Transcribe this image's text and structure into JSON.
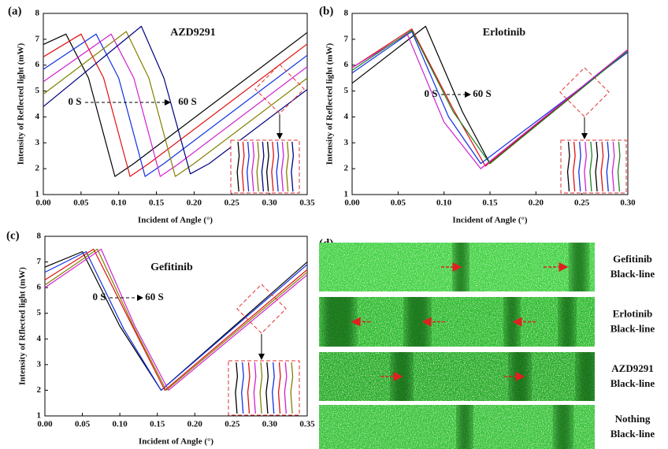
{
  "chart_data": [
    {
      "type": "line",
      "panel": "(a)",
      "title": "AZD9291",
      "xlabel": "Incident of Angle (°)",
      "ylabel": "Intensity of Reflected light (mW)",
      "annotations": [
        "0 S",
        "60 S"
      ],
      "xlim": [
        0,
        0.35
      ],
      "ylim": [
        1,
        8
      ],
      "xticks": [
        {
          "value": 0,
          "label": "0.00"
        },
        {
          "value": 0.05,
          "label": "0.05"
        },
        {
          "value": 0.1,
          "label": "0.10"
        },
        {
          "value": 0.15,
          "label": "0.15"
        },
        {
          "value": 0.2,
          "label": "0.20"
        },
        {
          "value": 0.25,
          "label": "0.25"
        },
        {
          "value": 0.3,
          "label": "0.30"
        },
        {
          "value": 0.35,
          "label": "0.35"
        }
      ],
      "yticks": [
        1,
        2,
        3,
        4,
        5,
        6,
        7,
        8
      ],
      "series": [
        {
          "color": "#000000",
          "x": [
            0,
            0.03,
            0.06,
            0.095,
            0.12,
            0.35
          ],
          "values": [
            6.8,
            7.2,
            5.5,
            1.7,
            2.2,
            7.26
          ]
        },
        {
          "color": "#e01010",
          "x": [
            0,
            0.05,
            0.08,
            0.115,
            0.14,
            0.35
          ],
          "values": [
            6.32,
            7.2,
            5.5,
            1.7,
            2.2,
            6.82
          ]
        },
        {
          "color": "#1030e0",
          "x": [
            0,
            0.07,
            0.1,
            0.135,
            0.16,
            0.35
          ],
          "values": [
            5.84,
            7.2,
            5.5,
            1.7,
            2.2,
            6.38
          ]
        },
        {
          "color": "#d020d0",
          "x": [
            0,
            0.09,
            0.12,
            0.155,
            0.18,
            0.35
          ],
          "values": [
            5.36,
            7.2,
            5.5,
            1.7,
            2.2,
            5.94
          ]
        },
        {
          "color": "#808000",
          "x": [
            0,
            0.11,
            0.14,
            0.175,
            0.2,
            0.35
          ],
          "values": [
            4.88,
            7.3,
            5.5,
            1.7,
            2.2,
            5.5
          ]
        },
        {
          "color": "#000080",
          "x": [
            0,
            0.13,
            0.16,
            0.195,
            0.22,
            0.35
          ],
          "values": [
            4.4,
            7.5,
            5.5,
            1.8,
            2.2,
            5.06
          ]
        }
      ]
    },
    {
      "type": "line",
      "panel": "(b)",
      "title": "Erlotinib",
      "xlabel": "Incident of Angle (°)",
      "ylabel": "Intensity of Reflected light (mW)",
      "annotations": [
        "0 S",
        "60 S"
      ],
      "xlim": [
        0,
        0.3
      ],
      "ylim": [
        1,
        8
      ],
      "xticks": [
        {
          "value": 0,
          "label": "0.00"
        },
        {
          "value": 0.05,
          "label": "0.05"
        },
        {
          "value": 0.1,
          "label": "0.10"
        },
        {
          "value": 0.15,
          "label": "0.15"
        },
        {
          "value": 0.2,
          "label": "0.20"
        },
        {
          "value": 0.25,
          "label": "0.25"
        },
        {
          "value": 0.3,
          "label": "0.30"
        }
      ],
      "yticks": [
        1,
        2,
        3,
        4,
        5,
        6,
        7,
        8
      ],
      "series": [
        {
          "color": "#000000",
          "x": [
            0,
            0.08,
            0.12,
            0.15,
            0.3
          ],
          "values": [
            5.3,
            7.5,
            4.2,
            2.2,
            6.6
          ]
        },
        {
          "color": "#e01010",
          "x": [
            0,
            0.065,
            0.11,
            0.145,
            0.3
          ],
          "values": [
            5.9,
            7.4,
            4.3,
            2.1,
            6.6
          ]
        },
        {
          "color": "#1030e0",
          "x": [
            0,
            0.065,
            0.105,
            0.14,
            0.3
          ],
          "values": [
            5.7,
            7.3,
            4.0,
            2.2,
            6.5
          ]
        },
        {
          "color": "#d020d0",
          "x": [
            0,
            0.06,
            0.1,
            0.14,
            0.3
          ],
          "values": [
            5.9,
            7.2,
            3.8,
            2.0,
            6.6
          ]
        },
        {
          "color": "#208020",
          "x": [
            0,
            0.065,
            0.11,
            0.15,
            0.3
          ],
          "values": [
            5.8,
            7.35,
            4.2,
            2.2,
            6.55
          ]
        }
      ]
    },
    {
      "type": "line",
      "panel": "(c)",
      "title": "Gefitinib",
      "xlabel": "Incident of Angle (°)",
      "ylabel": "Intensity of Rflected light (mW)",
      "annotations": [
        "0 S",
        "60 S"
      ],
      "xlim": [
        0,
        0.35
      ],
      "ylim": [
        1,
        8
      ],
      "xticks": [
        {
          "value": 0,
          "label": "0.00"
        },
        {
          "value": 0.05,
          "label": "0.05"
        },
        {
          "value": 0.1,
          "label": "0.10"
        },
        {
          "value": 0.15,
          "label": "0.15"
        },
        {
          "value": 0.2,
          "label": "0.20"
        },
        {
          "value": 0.25,
          "label": "0.25"
        },
        {
          "value": 0.3,
          "label": "0.30"
        },
        {
          "value": 0.35,
          "label": "0.35"
        }
      ],
      "yticks": [
        1,
        2,
        3,
        4,
        5,
        6,
        7,
        8
      ],
      "series": [
        {
          "color": "#000000",
          "x": [
            0,
            0.05,
            0.1,
            0.155,
            0.35
          ],
          "values": [
            6.8,
            7.4,
            4.5,
            2.0,
            7.0
          ]
        },
        {
          "color": "#1030e0",
          "x": [
            0,
            0.055,
            0.105,
            0.155,
            0.35
          ],
          "values": [
            6.6,
            7.4,
            4.4,
            2.0,
            6.9
          ]
        },
        {
          "color": "#e01010",
          "x": [
            0,
            0.065,
            0.115,
            0.16,
            0.35
          ],
          "values": [
            6.3,
            7.5,
            4.6,
            2.0,
            6.7
          ]
        },
        {
          "color": "#d020d0",
          "x": [
            0,
            0.075,
            0.12,
            0.165,
            0.35
          ],
          "values": [
            6.0,
            7.5,
            4.5,
            2.0,
            6.5
          ]
        },
        {
          "color": "#808000",
          "x": [
            0,
            0.07,
            0.118,
            0.162,
            0.35
          ],
          "values": [
            6.1,
            7.5,
            4.5,
            2.0,
            6.6
          ]
        }
      ]
    }
  ],
  "panel_d": {
    "label": "(d)",
    "rows": [
      {
        "name": "Gefitinib",
        "sub": "Black-line"
      },
      {
        "name": "Erlotinib",
        "sub": "Black-line"
      },
      {
        "name": "AZD9291",
        "sub": "Black-line"
      },
      {
        "name": "Nothing",
        "sub": "Black-line"
      }
    ]
  }
}
